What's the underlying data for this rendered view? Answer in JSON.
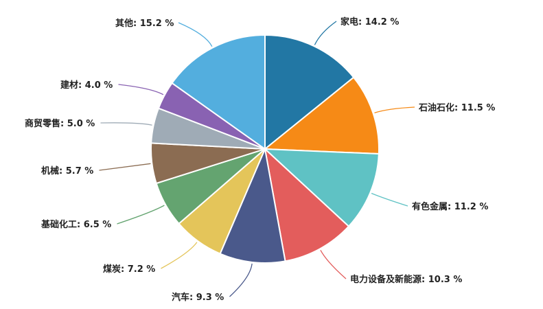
{
  "chart_data": {
    "type": "pie",
    "title": "",
    "start": "top",
    "direction": "clockwise",
    "slices": [
      {
        "name": "家电",
        "value": 14.2,
        "label": "家电: 14.2 %",
        "color": "#2277a4"
      },
      {
        "name": "石油石化",
        "value": 11.5,
        "label": "石油石化: 11.5 %",
        "color": "#f68a16"
      },
      {
        "name": "有色金属",
        "value": 11.2,
        "label": "有色金属: 11.2 %",
        "color": "#5fc2c4"
      },
      {
        "name": "电力设备及新能源",
        "value": 10.3,
        "label": "电力设备及新能源: 10.3 %",
        "color": "#e35d5c"
      },
      {
        "name": "汽车",
        "value": 9.3,
        "label": "汽车: 9.3 %",
        "color": "#4a598b"
      },
      {
        "name": "煤炭",
        "value": 7.2,
        "label": "煤炭: 7.2 %",
        "color": "#e4c55a"
      },
      {
        "name": "基础化工",
        "value": 6.5,
        "label": "基础化工: 6.5 %",
        "color": "#64a470"
      },
      {
        "name": "机械",
        "value": 5.7,
        "label": "机械: 5.7 %",
        "color": "#8b6c52"
      },
      {
        "name": "商贸零售",
        "value": 5.0,
        "label": "商贸零售: 5.0 %",
        "color": "#9fabb6"
      },
      {
        "name": "建材",
        "value": 4.0,
        "label": "建材: 4.0 %",
        "color": "#8962b2"
      },
      {
        "name": "其他",
        "value": 15.2,
        "label": "其他: 15.2 %",
        "color": "#53aede"
      }
    ]
  }
}
